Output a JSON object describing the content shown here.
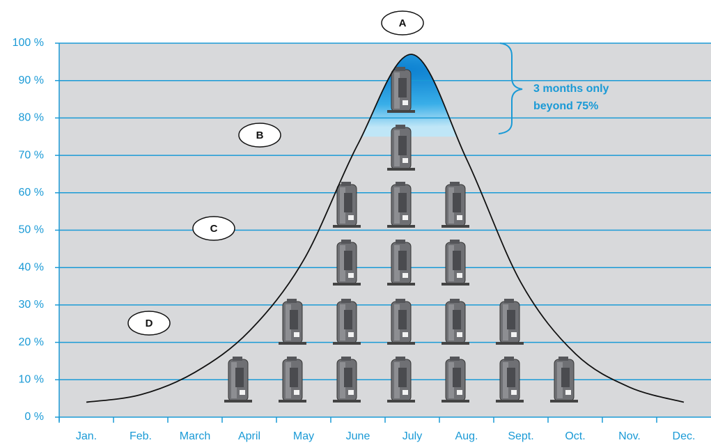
{
  "chart_data": {
    "type": "line",
    "categories": [
      "Jan.",
      "Feb.",
      "March",
      "April",
      "May",
      "June",
      "July",
      "Aug.",
      "Sept.",
      "Oct.",
      "Nov.",
      "Dec."
    ],
    "series": [
      {
        "color": "#111111",
        "values": [
          4,
          6,
          12,
          23,
          42,
          73,
          97,
          69,
          36,
          17,
          8,
          4
        ]
      }
    ],
    "compressors": [
      0,
      0,
      0,
      1,
      2,
      4,
      6,
      4,
      2,
      1,
      0,
      0
    ],
    "ylim": [
      0,
      100
    ],
    "yticks": [
      {
        "value": 0,
        "label": "0 %"
      },
      {
        "value": 10,
        "label": "10 %"
      },
      {
        "value": 20,
        "label": "20 %"
      },
      {
        "value": 30,
        "label": "30 %"
      },
      {
        "value": 40,
        "label": "40 %"
      },
      {
        "value": 50,
        "label": "50 %"
      },
      {
        "value": 60,
        "label": "60 %"
      },
      {
        "value": 70,
        "label": "70 %"
      },
      {
        "value": 80,
        "label": "80 %"
      },
      {
        "value": 90,
        "label": "90 %"
      },
      {
        "value": 100,
        "label": "100 %"
      }
    ],
    "grid": true,
    "grid_color": "#1a9ad6",
    "background": "#d8d9db",
    "highlight_from": 75,
    "annotations": [
      "A",
      "B",
      "C",
      "D"
    ],
    "note": [
      "3 months only",
      "beyond 75%"
    ]
  }
}
